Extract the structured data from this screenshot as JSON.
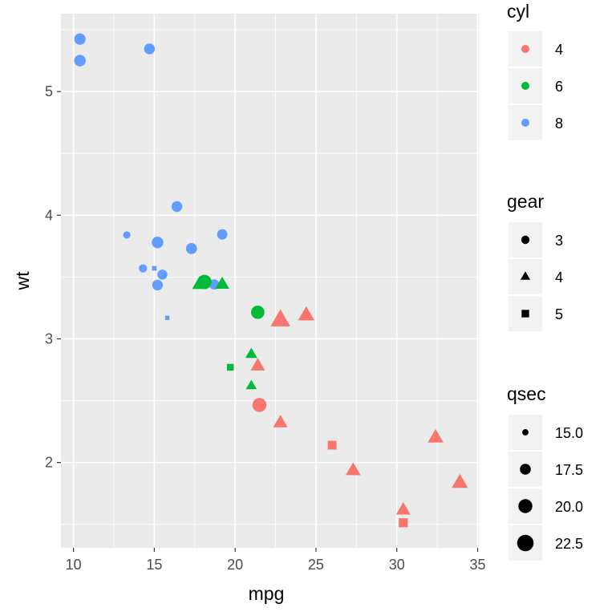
{
  "chart_data": {
    "type": "scatter",
    "title": "",
    "xlabel": "mpg",
    "ylabel": "wt",
    "xlim": [
      9.225,
      35.075
    ],
    "ylim": [
      1.31,
      5.63
    ],
    "x_ticks": [
      10,
      15,
      20,
      25,
      30,
      35
    ],
    "y_ticks": [
      2,
      3,
      4,
      5
    ],
    "grid": true,
    "legend_position": "right",
    "colors": {
      "4": "#F8766D",
      "6": "#00BA38",
      "8": "#619CFF"
    },
    "legends": {
      "color": {
        "title": "cyl",
        "entries": [
          "4",
          "6",
          "8"
        ]
      },
      "shape": {
        "title": "gear",
        "entries": [
          "3",
          "4",
          "5"
        ],
        "shapes": [
          "circle",
          "triangle",
          "square"
        ]
      },
      "size": {
        "title": "qsec",
        "entries": [
          "15.0",
          "17.5",
          "20.0",
          "22.5"
        ],
        "values": [
          15.0,
          17.5,
          20.0,
          22.5
        ]
      }
    },
    "points": [
      {
        "mpg": 21.0,
        "wt": 2.62,
        "cyl": "6",
        "gear": "4",
        "qsec": 16.46
      },
      {
        "mpg": 21.0,
        "wt": 2.875,
        "cyl": "6",
        "gear": "4",
        "qsec": 17.02
      },
      {
        "mpg": 22.8,
        "wt": 2.32,
        "cyl": "4",
        "gear": "4",
        "qsec": 18.61
      },
      {
        "mpg": 21.4,
        "wt": 3.215,
        "cyl": "6",
        "gear": "3",
        "qsec": 19.44
      },
      {
        "mpg": 18.7,
        "wt": 3.44,
        "cyl": "8",
        "gear": "3",
        "qsec": 17.02
      },
      {
        "mpg": 18.1,
        "wt": 3.46,
        "cyl": "6",
        "gear": "3",
        "qsec": 20.22
      },
      {
        "mpg": 14.3,
        "wt": 3.57,
        "cyl": "8",
        "gear": "3",
        "qsec": 15.84
      },
      {
        "mpg": 24.4,
        "wt": 3.19,
        "cyl": "4",
        "gear": "4",
        "qsec": 20.0
      },
      {
        "mpg": 22.8,
        "wt": 3.15,
        "cyl": "4",
        "gear": "4",
        "qsec": 22.9
      },
      {
        "mpg": 19.2,
        "wt": 3.44,
        "cyl": "6",
        "gear": "4",
        "qsec": 18.3
      },
      {
        "mpg": 17.8,
        "wt": 3.44,
        "cyl": "6",
        "gear": "4",
        "qsec": 18.9
      },
      {
        "mpg": 16.4,
        "wt": 4.07,
        "cyl": "8",
        "gear": "3",
        "qsec": 17.4
      },
      {
        "mpg": 17.3,
        "wt": 3.73,
        "cyl": "8",
        "gear": "3",
        "qsec": 17.6
      },
      {
        "mpg": 15.2,
        "wt": 3.78,
        "cyl": "8",
        "gear": "3",
        "qsec": 18.0
      },
      {
        "mpg": 10.4,
        "wt": 5.25,
        "cyl": "8",
        "gear": "3",
        "qsec": 17.98
      },
      {
        "mpg": 10.4,
        "wt": 5.424,
        "cyl": "8",
        "gear": "3",
        "qsec": 17.82
      },
      {
        "mpg": 14.7,
        "wt": 5.345,
        "cyl": "8",
        "gear": "3",
        "qsec": 17.42
      },
      {
        "mpg": 32.4,
        "wt": 2.2,
        "cyl": "4",
        "gear": "4",
        "qsec": 19.47
      },
      {
        "mpg": 30.4,
        "wt": 1.615,
        "cyl": "4",
        "gear": "4",
        "qsec": 18.52
      },
      {
        "mpg": 33.9,
        "wt": 1.835,
        "cyl": "4",
        "gear": "4",
        "qsec": 19.9
      },
      {
        "mpg": 21.5,
        "wt": 2.465,
        "cyl": "4",
        "gear": "3",
        "qsec": 20.01
      },
      {
        "mpg": 15.5,
        "wt": 3.52,
        "cyl": "8",
        "gear": "3",
        "qsec": 16.87
      },
      {
        "mpg": 15.2,
        "wt": 3.435,
        "cyl": "8",
        "gear": "3",
        "qsec": 17.3
      },
      {
        "mpg": 13.3,
        "wt": 3.84,
        "cyl": "8",
        "gear": "3",
        "qsec": 15.41
      },
      {
        "mpg": 19.2,
        "wt": 3.845,
        "cyl": "8",
        "gear": "3",
        "qsec": 17.05
      },
      {
        "mpg": 27.3,
        "wt": 1.935,
        "cyl": "4",
        "gear": "4",
        "qsec": 18.9
      },
      {
        "mpg": 26.0,
        "wt": 2.14,
        "cyl": "4",
        "gear": "5",
        "qsec": 16.7
      },
      {
        "mpg": 30.4,
        "wt": 1.513,
        "cyl": "4",
        "gear": "5",
        "qsec": 16.9
      },
      {
        "mpg": 15.8,
        "wt": 3.17,
        "cyl": "8",
        "gear": "5",
        "qsec": 14.5
      },
      {
        "mpg": 19.7,
        "wt": 2.77,
        "cyl": "6",
        "gear": "5",
        "qsec": 15.5
      },
      {
        "mpg": 15.0,
        "wt": 3.57,
        "cyl": "8",
        "gear": "5",
        "qsec": 14.6
      },
      {
        "mpg": 21.4,
        "wt": 2.78,
        "cyl": "4",
        "gear": "4",
        "qsec": 18.6
      }
    ]
  }
}
